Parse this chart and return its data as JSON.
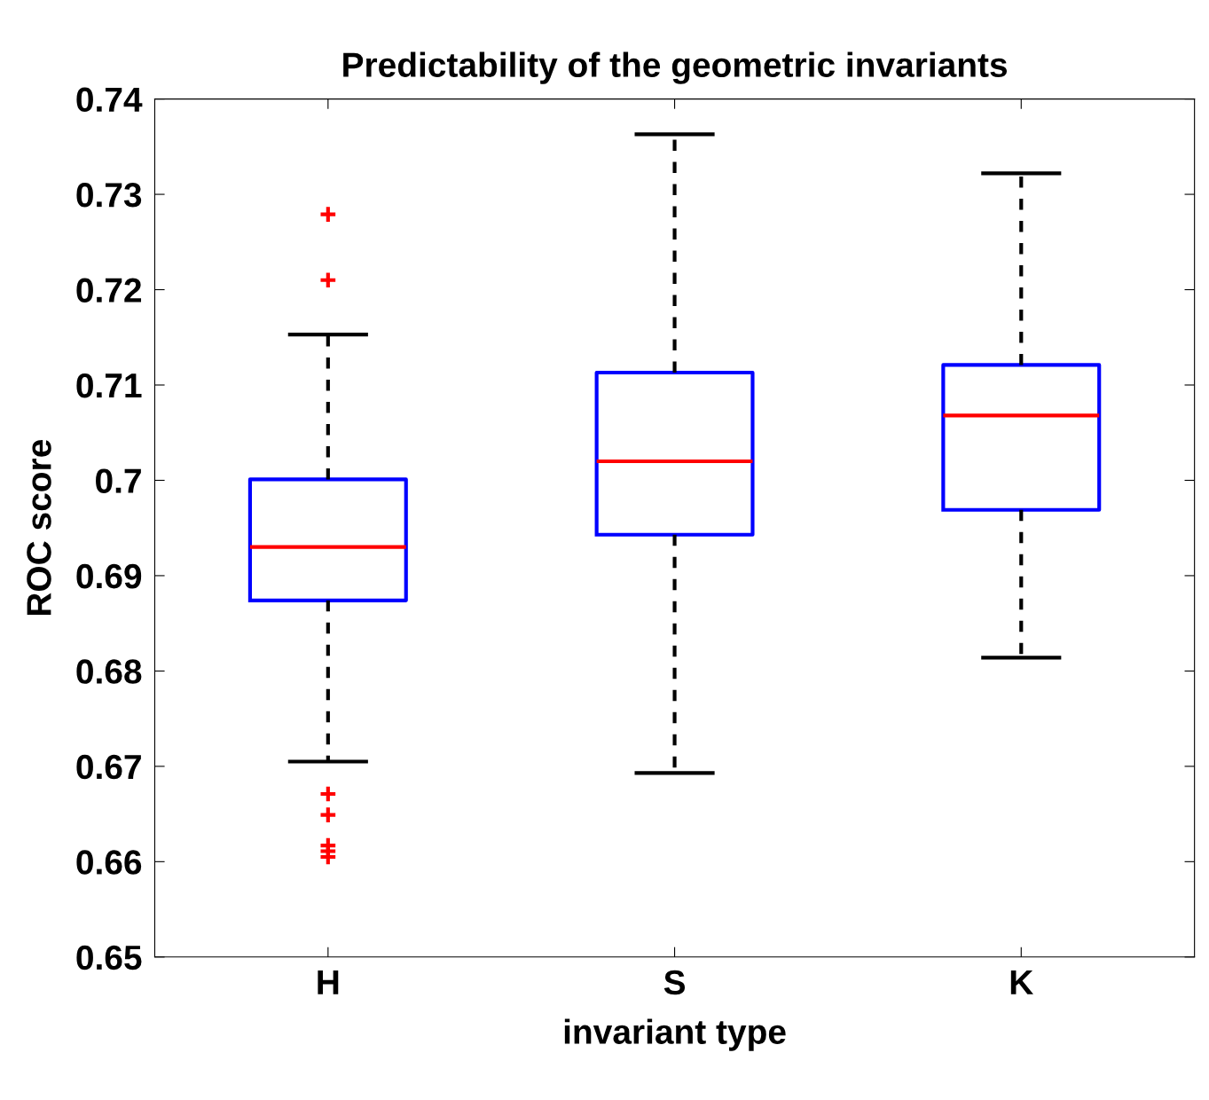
{
  "chart_data": {
    "type": "box",
    "title": "Predictability of the geometric invariants",
    "xlabel": "invariant type",
    "ylabel": "ROC score",
    "categories": [
      "H",
      "S",
      "K"
    ],
    "boxes": [
      {
        "low": 0.6705,
        "q1": 0.6874,
        "median": 0.693,
        "q3": 0.7001,
        "high": 0.7153,
        "outliers": [
          0.7279,
          0.721,
          0.6671,
          0.6649,
          0.6617,
          0.6611,
          0.6605
        ]
      },
      {
        "low": 0.6693,
        "q1": 0.6943,
        "median": 0.702,
        "q3": 0.7113,
        "high": 0.7363
      },
      {
        "low": 0.6814,
        "q1": 0.6969,
        "median": 0.7068,
        "q3": 0.7121,
        "high": 0.7322
      }
    ],
    "color": "#0000ff",
    "marker": "cross",
    "ylim": [
      0.65,
      0.74
    ],
    "yticks": [
      0.65,
      0.66,
      0.67,
      0.68,
      0.69,
      0.7,
      0.71,
      0.72,
      0.73,
      0.74
    ]
  }
}
